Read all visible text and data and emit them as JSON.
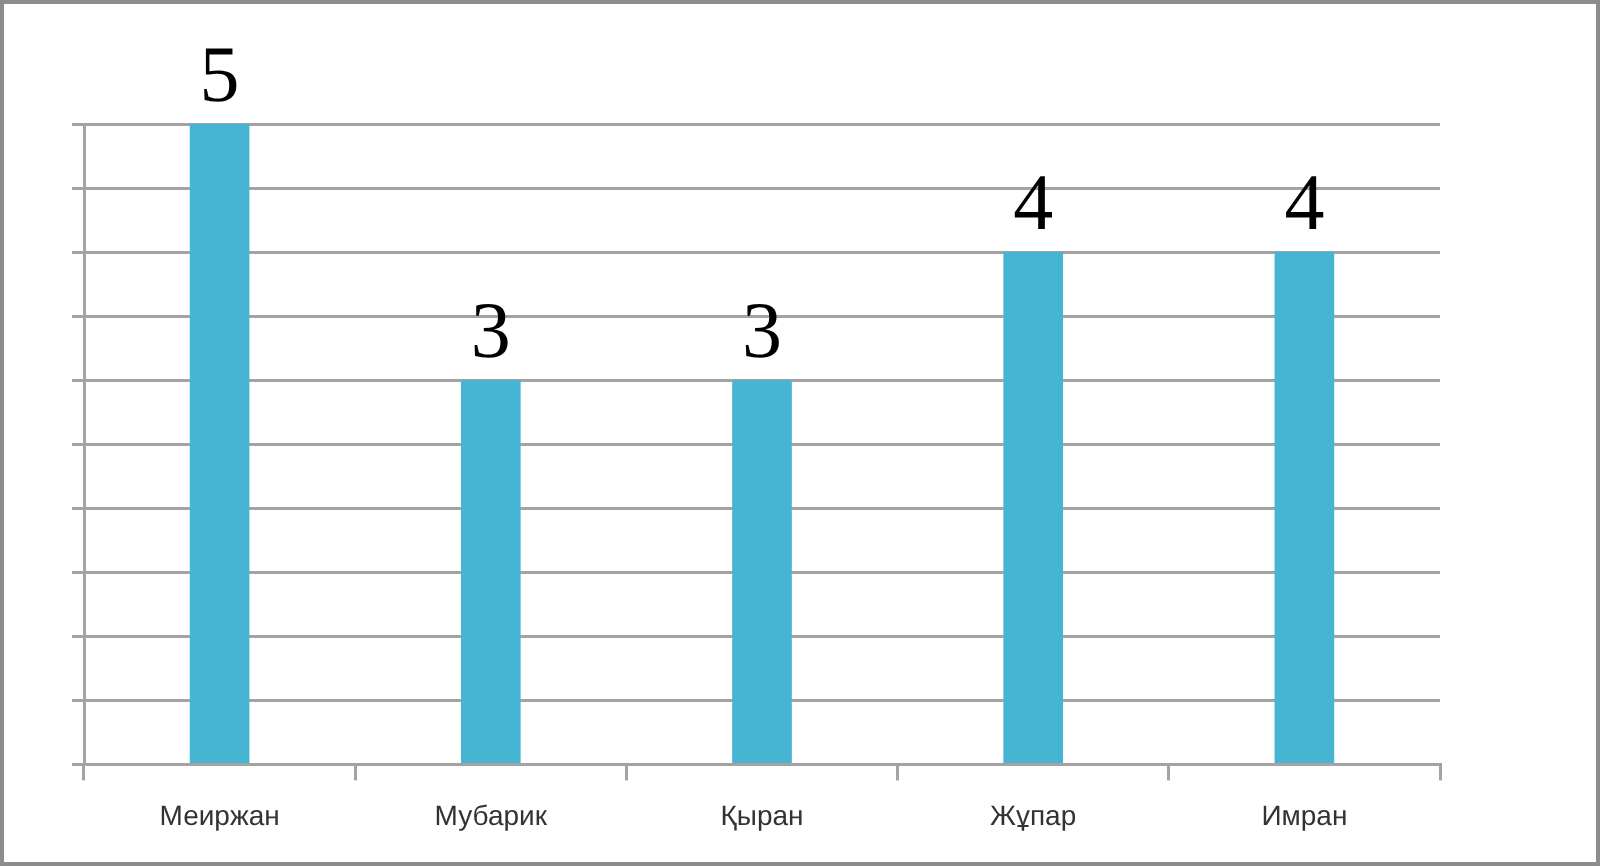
{
  "chart_data": {
    "type": "bar",
    "categories": [
      "Меиржан",
      "Мубарик",
      "Қыран",
      "Жұпар",
      "Имран"
    ],
    "values": [
      5,
      3,
      3,
      4,
      4
    ],
    "color": "#45b5d3",
    "ylim": [
      0,
      5
    ],
    "yticks": [
      {
        "value": 0,
        "label": null
      },
      {
        "value": 0.5,
        "label": null
      },
      {
        "value": 1,
        "label": null
      },
      {
        "value": 1.5,
        "label": null
      },
      {
        "value": 2,
        "label": null
      },
      {
        "value": 2.5,
        "label": null
      },
      {
        "value": 3,
        "label": null
      },
      {
        "value": 3.5,
        "label": null
      },
      {
        "value": 4,
        "label": null
      },
      {
        "value": 4.5,
        "label": null
      },
      {
        "value": 5,
        "label": null
      }
    ],
    "grid": "y",
    "tick_labels": "x",
    "data_labels": true,
    "legend": false
  }
}
